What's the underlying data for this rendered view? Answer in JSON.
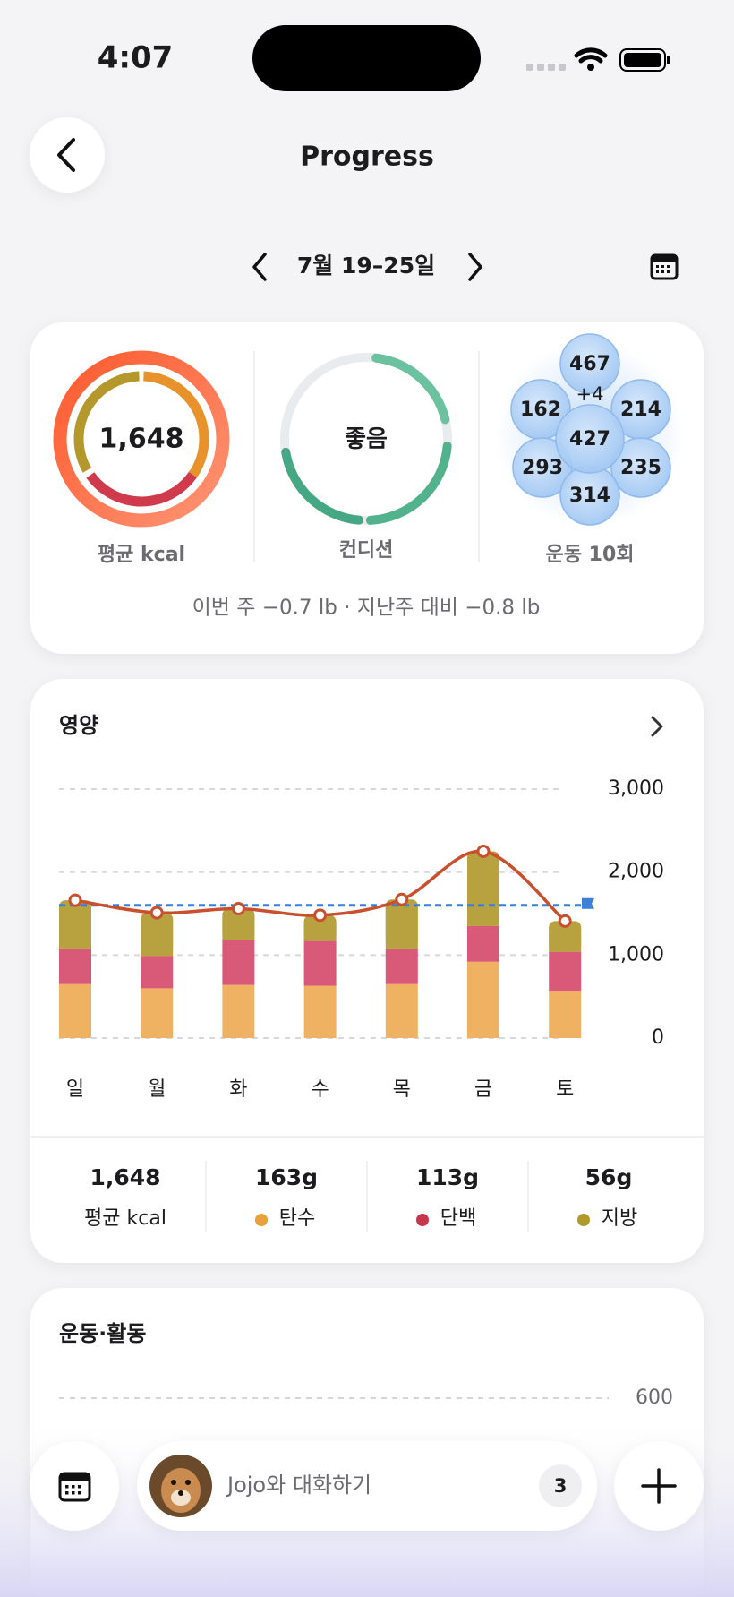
{
  "status_bar": {
    "time": "4:07"
  },
  "header": {
    "title": "Progress"
  },
  "week_nav": {
    "label": "7월 19–25일"
  },
  "summary": {
    "calories": {
      "value": "1,648",
      "label": "평균 kcal"
    },
    "condition": {
      "value": "좋음",
      "label": "컨디션"
    },
    "exercise": {
      "bubbles": [
        "467",
        "+4",
        "162",
        "214",
        "427",
        "293",
        "235",
        "314"
      ],
      "label": "운동 10회"
    },
    "weight_note": "이번 주 −0.7 lb · 지난주 대비 −0.8 lb"
  },
  "nutrition": {
    "title": "영양",
    "chart": {
      "type": "bar",
      "stacked": true,
      "categories": [
        "일",
        "월",
        "화",
        "수",
        "목",
        "금",
        "토"
      ],
      "series": [
        {
          "color": "#efb263",
          "values": [
            650,
            600,
            640,
            630,
            650,
            920,
            570
          ]
        },
        {
          "color": "#d95a78",
          "values": [
            430,
            390,
            540,
            540,
            430,
            430,
            470
          ]
        },
        {
          "color": "#b8a23f",
          "values": [
            580,
            520,
            380,
            310,
            590,
            900,
            370
          ]
        }
      ],
      "line": {
        "color": "#c9502e",
        "values": [
          1660,
          1510,
          1560,
          1480,
          1670,
          2250,
          1410
        ]
      },
      "target": {
        "color": "#3b7fd6",
        "value": 1600
      },
      "ylim": [
        0,
        3000
      ],
      "yticks": [
        0,
        {
          "value": 1000,
          "label": "1,000"
        },
        {
          "value": 2000,
          "label": "2,000"
        },
        {
          "value": 3000,
          "label": "3,000"
        }
      ],
      "grid": true
    },
    "stats": [
      {
        "value": "1,648",
        "label": "평균 kcal"
      },
      {
        "value": "163g",
        "label": "탄수"
      },
      {
        "value": "113g",
        "label": "단백"
      },
      {
        "value": "56g",
        "label": "지방"
      }
    ]
  },
  "activity": {
    "title": "운동·활동",
    "yticks": [
      600
    ]
  },
  "chat_bar": {
    "placeholder": "Jojo와 대화하기",
    "badge": "3"
  }
}
